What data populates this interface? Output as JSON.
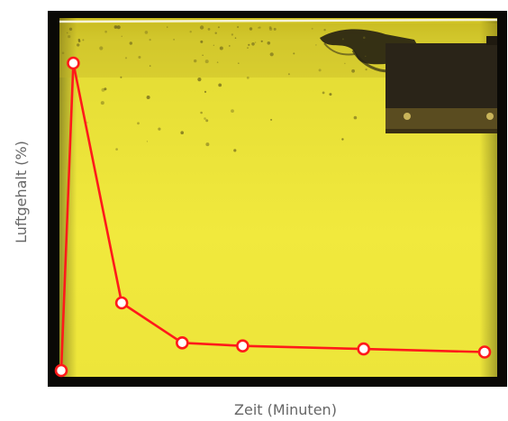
{
  "chart_data": {
    "type": "line",
    "xlabel": "Zeit (Minuten)",
    "ylabel": "Luftgehalt (%)",
    "x": [
      0,
      0.1,
      0.5,
      1,
      1.5,
      2.5,
      3.5
    ],
    "values": [
      0,
      100,
      22,
      9,
      8,
      7,
      6
    ],
    "xlim": [
      0,
      3.5
    ],
    "ylim": [
      0,
      100
    ],
    "x_ticks_shown": false,
    "y_ticks_shown": false,
    "grid": false,
    "legend": "none",
    "line_color": "#ff1a1a",
    "marker_fill": "#ffffff",
    "marker_stroke": "#ff1a1a",
    "background": "photo of oil with air bubbles in a transparent container",
    "background_colors": {
      "frame": "#0a0906",
      "oil": "#ece43a",
      "oil_light": "#f4ec3e",
      "oil_top": "#d8cf2e",
      "device": "#2a2418",
      "device_plate": "#5a4c20"
    }
  }
}
